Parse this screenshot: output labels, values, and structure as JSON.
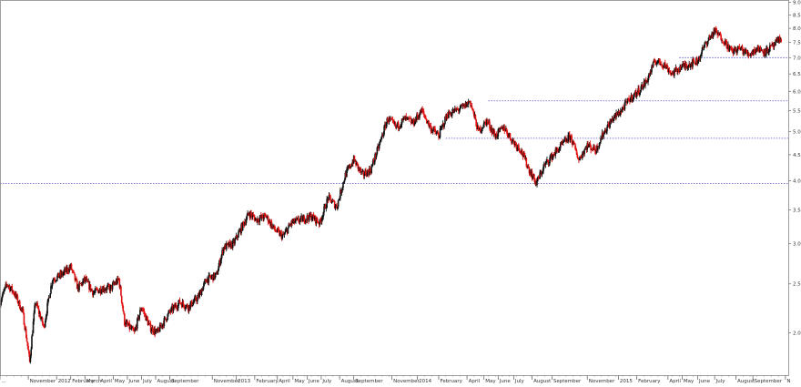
{
  "chart_data": {
    "type": "candlestick",
    "title": "",
    "xlabel": "",
    "ylabel": "",
    "yscale": "log",
    "ylim": [
      1.65,
      9.1
    ],
    "grid": false,
    "legend": "none",
    "y_ticks": [
      {
        "value": 2.0,
        "label": "2.0"
      },
      {
        "value": 2.5,
        "label": "2.5"
      },
      {
        "value": 3.0,
        "label": "3.0"
      },
      {
        "value": 3.5,
        "label": "3.5"
      },
      {
        "value": 4.0,
        "label": "4.0"
      },
      {
        "value": 4.5,
        "label": "4.5"
      },
      {
        "value": 5.0,
        "label": "5.0"
      },
      {
        "value": 5.5,
        "label": "5.5"
      },
      {
        "value": 6.0,
        "label": "6.0"
      },
      {
        "value": 6.5,
        "label": "6.5"
      },
      {
        "value": 7.0,
        "label": "7.0"
      },
      {
        "value": 7.5,
        "label": "7.5"
      },
      {
        "value": 8.0,
        "label": "8.0"
      },
      {
        "value": 8.5,
        "label": "8.5"
      },
      {
        "value": 9.0,
        "label": "9.0"
      }
    ],
    "x_ticks": [
      {
        "month": 0,
        "label": "..."
      },
      {
        "month": 2,
        "label": "November"
      },
      {
        "month": 4,
        "label": "2012"
      },
      {
        "month": 5,
        "label": "February"
      },
      {
        "month": 6,
        "label": "March"
      },
      {
        "month": 7,
        "label": "April"
      },
      {
        "month": 8,
        "label": "May"
      },
      {
        "month": 9,
        "label": "June"
      },
      {
        "month": 10,
        "label": "July"
      },
      {
        "month": 11,
        "label": "August"
      },
      {
        "month": 12,
        "label": "September"
      },
      {
        "month": 15,
        "label": "November"
      },
      {
        "month": 16.7,
        "label": "2013"
      },
      {
        "month": 18,
        "label": "February"
      },
      {
        "month": 19.6,
        "label": "April"
      },
      {
        "month": 20.7,
        "label": "May"
      },
      {
        "month": 21.7,
        "label": "June"
      },
      {
        "month": 22.7,
        "label": "July"
      },
      {
        "month": 24,
        "label": "August"
      },
      {
        "month": 25,
        "label": "September"
      },
      {
        "month": 27.7,
        "label": "November"
      },
      {
        "month": 29.5,
        "label": "2014"
      },
      {
        "month": 31,
        "label": "February"
      },
      {
        "month": 33,
        "label": "April"
      },
      {
        "month": 34.2,
        "label": "May"
      },
      {
        "month": 35.2,
        "label": "June"
      },
      {
        "month": 36.3,
        "label": "July"
      },
      {
        "month": 37.6,
        "label": "August"
      },
      {
        "month": 39,
        "label": "September"
      },
      {
        "month": 41.5,
        "label": "November"
      },
      {
        "month": 43.7,
        "label": "2015"
      },
      {
        "month": 45,
        "label": "February"
      },
      {
        "month": 47.2,
        "label": "April"
      },
      {
        "month": 48.2,
        "label": "May"
      },
      {
        "month": 49.3,
        "label": "June"
      },
      {
        "month": 50.5,
        "label": "July"
      },
      {
        "month": 52,
        "label": "August"
      },
      {
        "month": 53.2,
        "label": "September"
      },
      {
        "month": 55.5,
        "label": "N"
      }
    ],
    "x_range_months": [
      0,
      55.7
    ],
    "reference_lines": [
      {
        "value": 3.95,
        "from_month": 0,
        "style": "dotted",
        "color": "#5a55c8"
      },
      {
        "value": 4.85,
        "from_month": 31.5,
        "style": "dotted",
        "color": "#5a55c8"
      },
      {
        "value": 5.75,
        "from_month": 34.5,
        "style": "dotted",
        "color": "#5a55c8"
      },
      {
        "value": 7.0,
        "from_month": 48,
        "style": "dotted",
        "color": "#5a55c8"
      }
    ],
    "price_path": [
      {
        "month": 0,
        "price": 2.3
      },
      {
        "month": 0.5,
        "price": 2.5
      },
      {
        "month": 1.0,
        "price": 2.4
      },
      {
        "month": 1.6,
        "price": 2.2
      },
      {
        "month": 2.1,
        "price": 1.75
      },
      {
        "month": 2.5,
        "price": 2.3
      },
      {
        "month": 3.1,
        "price": 2.05
      },
      {
        "month": 3.7,
        "price": 2.55
      },
      {
        "month": 4.3,
        "price": 2.6
      },
      {
        "month": 5.0,
        "price": 2.7
      },
      {
        "month": 5.5,
        "price": 2.45
      },
      {
        "month": 6.0,
        "price": 2.55
      },
      {
        "month": 6.6,
        "price": 2.4
      },
      {
        "month": 7.2,
        "price": 2.45
      },
      {
        "month": 7.8,
        "price": 2.45
      },
      {
        "month": 8.4,
        "price": 2.55
      },
      {
        "month": 8.8,
        "price": 2.1
      },
      {
        "month": 9.5,
        "price": 2.0
      },
      {
        "month": 10.0,
        "price": 2.25
      },
      {
        "month": 10.6,
        "price": 2.05
      },
      {
        "month": 11.1,
        "price": 2.0
      },
      {
        "month": 12.0,
        "price": 2.2
      },
      {
        "month": 12.7,
        "price": 2.3
      },
      {
        "month": 13.3,
        "price": 2.25
      },
      {
        "month": 14.0,
        "price": 2.35
      },
      {
        "month": 14.6,
        "price": 2.55
      },
      {
        "month": 15.3,
        "price": 2.6
      },
      {
        "month": 15.8,
        "price": 2.95
      },
      {
        "month": 16.5,
        "price": 3.0
      },
      {
        "month": 17.0,
        "price": 3.2
      },
      {
        "month": 17.6,
        "price": 3.45
      },
      {
        "month": 18.1,
        "price": 3.35
      },
      {
        "month": 18.8,
        "price": 3.4
      },
      {
        "month": 19.4,
        "price": 3.2
      },
      {
        "month": 20.0,
        "price": 3.1
      },
      {
        "month": 20.6,
        "price": 3.3
      },
      {
        "month": 21.3,
        "price": 3.35
      },
      {
        "month": 22.0,
        "price": 3.4
      },
      {
        "month": 22.6,
        "price": 3.3
      },
      {
        "month": 23.2,
        "price": 3.7
      },
      {
        "month": 23.8,
        "price": 3.55
      },
      {
        "month": 24.4,
        "price": 4.1
      },
      {
        "month": 25.0,
        "price": 4.4
      },
      {
        "month": 25.6,
        "price": 4.1
      },
      {
        "month": 26.2,
        "price": 4.2
      },
      {
        "month": 26.8,
        "price": 4.7
      },
      {
        "month": 27.4,
        "price": 5.3
      },
      {
        "month": 28.0,
        "price": 5.1
      },
      {
        "month": 28.6,
        "price": 5.3
      },
      {
        "month": 29.2,
        "price": 5.2
      },
      {
        "month": 29.8,
        "price": 5.5
      },
      {
        "month": 30.4,
        "price": 5.1
      },
      {
        "month": 31.0,
        "price": 4.9
      },
      {
        "month": 31.6,
        "price": 5.4
      },
      {
        "month": 32.2,
        "price": 5.5
      },
      {
        "month": 32.8,
        "price": 5.6
      },
      {
        "month": 33.2,
        "price": 5.75
      },
      {
        "month": 33.8,
        "price": 5.0
      },
      {
        "month": 34.4,
        "price": 5.25
      },
      {
        "month": 35.0,
        "price": 4.9
      },
      {
        "month": 35.6,
        "price": 5.1
      },
      {
        "month": 36.2,
        "price": 4.8
      },
      {
        "month": 36.8,
        "price": 4.6
      },
      {
        "month": 37.4,
        "price": 4.2
      },
      {
        "month": 37.9,
        "price": 3.95
      },
      {
        "month": 38.5,
        "price": 4.3
      },
      {
        "month": 39.1,
        "price": 4.5
      },
      {
        "month": 39.7,
        "price": 4.7
      },
      {
        "month": 40.3,
        "price": 4.9
      },
      {
        "month": 40.9,
        "price": 4.4
      },
      {
        "month": 41.5,
        "price": 4.7
      },
      {
        "month": 42.1,
        "price": 4.6
      },
      {
        "month": 42.7,
        "price": 5.0
      },
      {
        "month": 43.3,
        "price": 5.3
      },
      {
        "month": 43.9,
        "price": 5.5
      },
      {
        "month": 44.5,
        "price": 5.8
      },
      {
        "month": 45.1,
        "price": 6.0
      },
      {
        "month": 45.7,
        "price": 6.3
      },
      {
        "month": 46.3,
        "price": 6.9
      },
      {
        "month": 46.9,
        "price": 6.8
      },
      {
        "month": 47.5,
        "price": 6.5
      },
      {
        "month": 48.1,
        "price": 6.7
      },
      {
        "month": 48.7,
        "price": 6.8
      },
      {
        "month": 49.3,
        "price": 6.9
      },
      {
        "month": 49.9,
        "price": 7.5
      },
      {
        "month": 50.5,
        "price": 7.9
      },
      {
        "month": 51.1,
        "price": 7.6
      },
      {
        "month": 51.7,
        "price": 7.2
      },
      {
        "month": 52.3,
        "price": 7.3
      },
      {
        "month": 52.9,
        "price": 7.1
      },
      {
        "month": 53.5,
        "price": 7.3
      },
      {
        "month": 54.1,
        "price": 7.2
      },
      {
        "month": 54.7,
        "price": 7.4
      },
      {
        "month": 55.2,
        "price": 7.65
      }
    ],
    "candle_colors": {
      "up": "#111111",
      "down": "#e01010"
    },
    "reference_line_color": "#5a55c8"
  }
}
